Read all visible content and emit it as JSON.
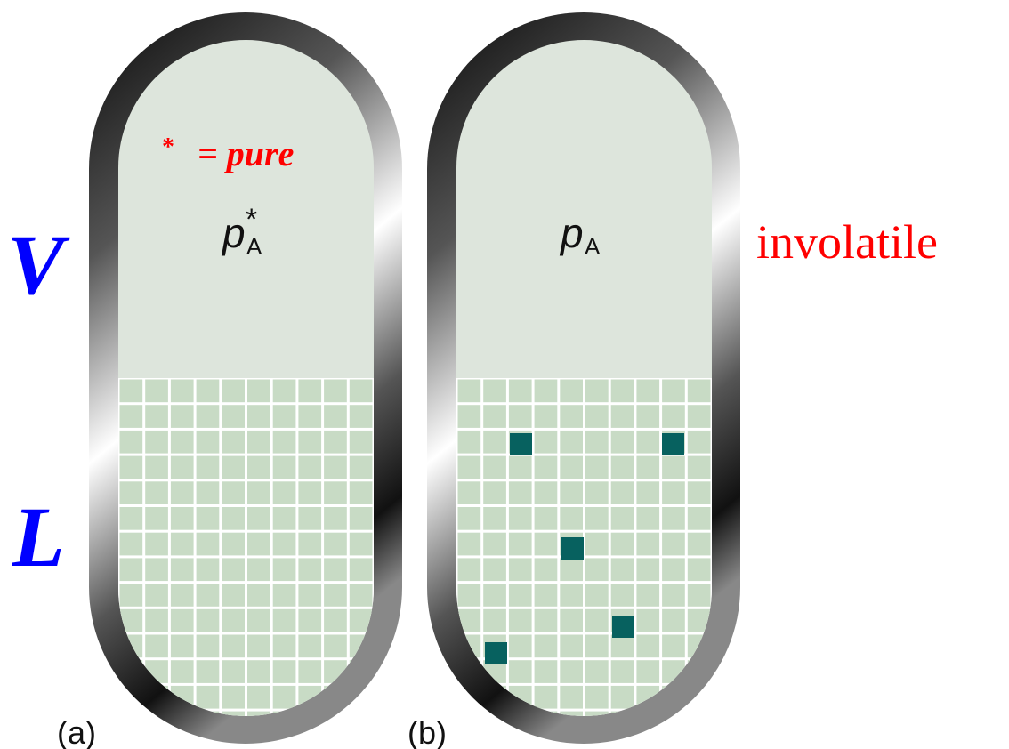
{
  "phase_labels": {
    "vapor": "V",
    "liquid": "L"
  },
  "note": {
    "symbol": "*",
    "text": "= pure"
  },
  "containers": [
    {
      "label": "(a)",
      "pressure": {
        "symbol": "p",
        "superscript": "*",
        "subscript": "A"
      }
    },
    {
      "label": "(b)",
      "pressure": {
        "symbol": "p",
        "subscript": "A"
      }
    }
  ],
  "side_note": "involatile"
}
